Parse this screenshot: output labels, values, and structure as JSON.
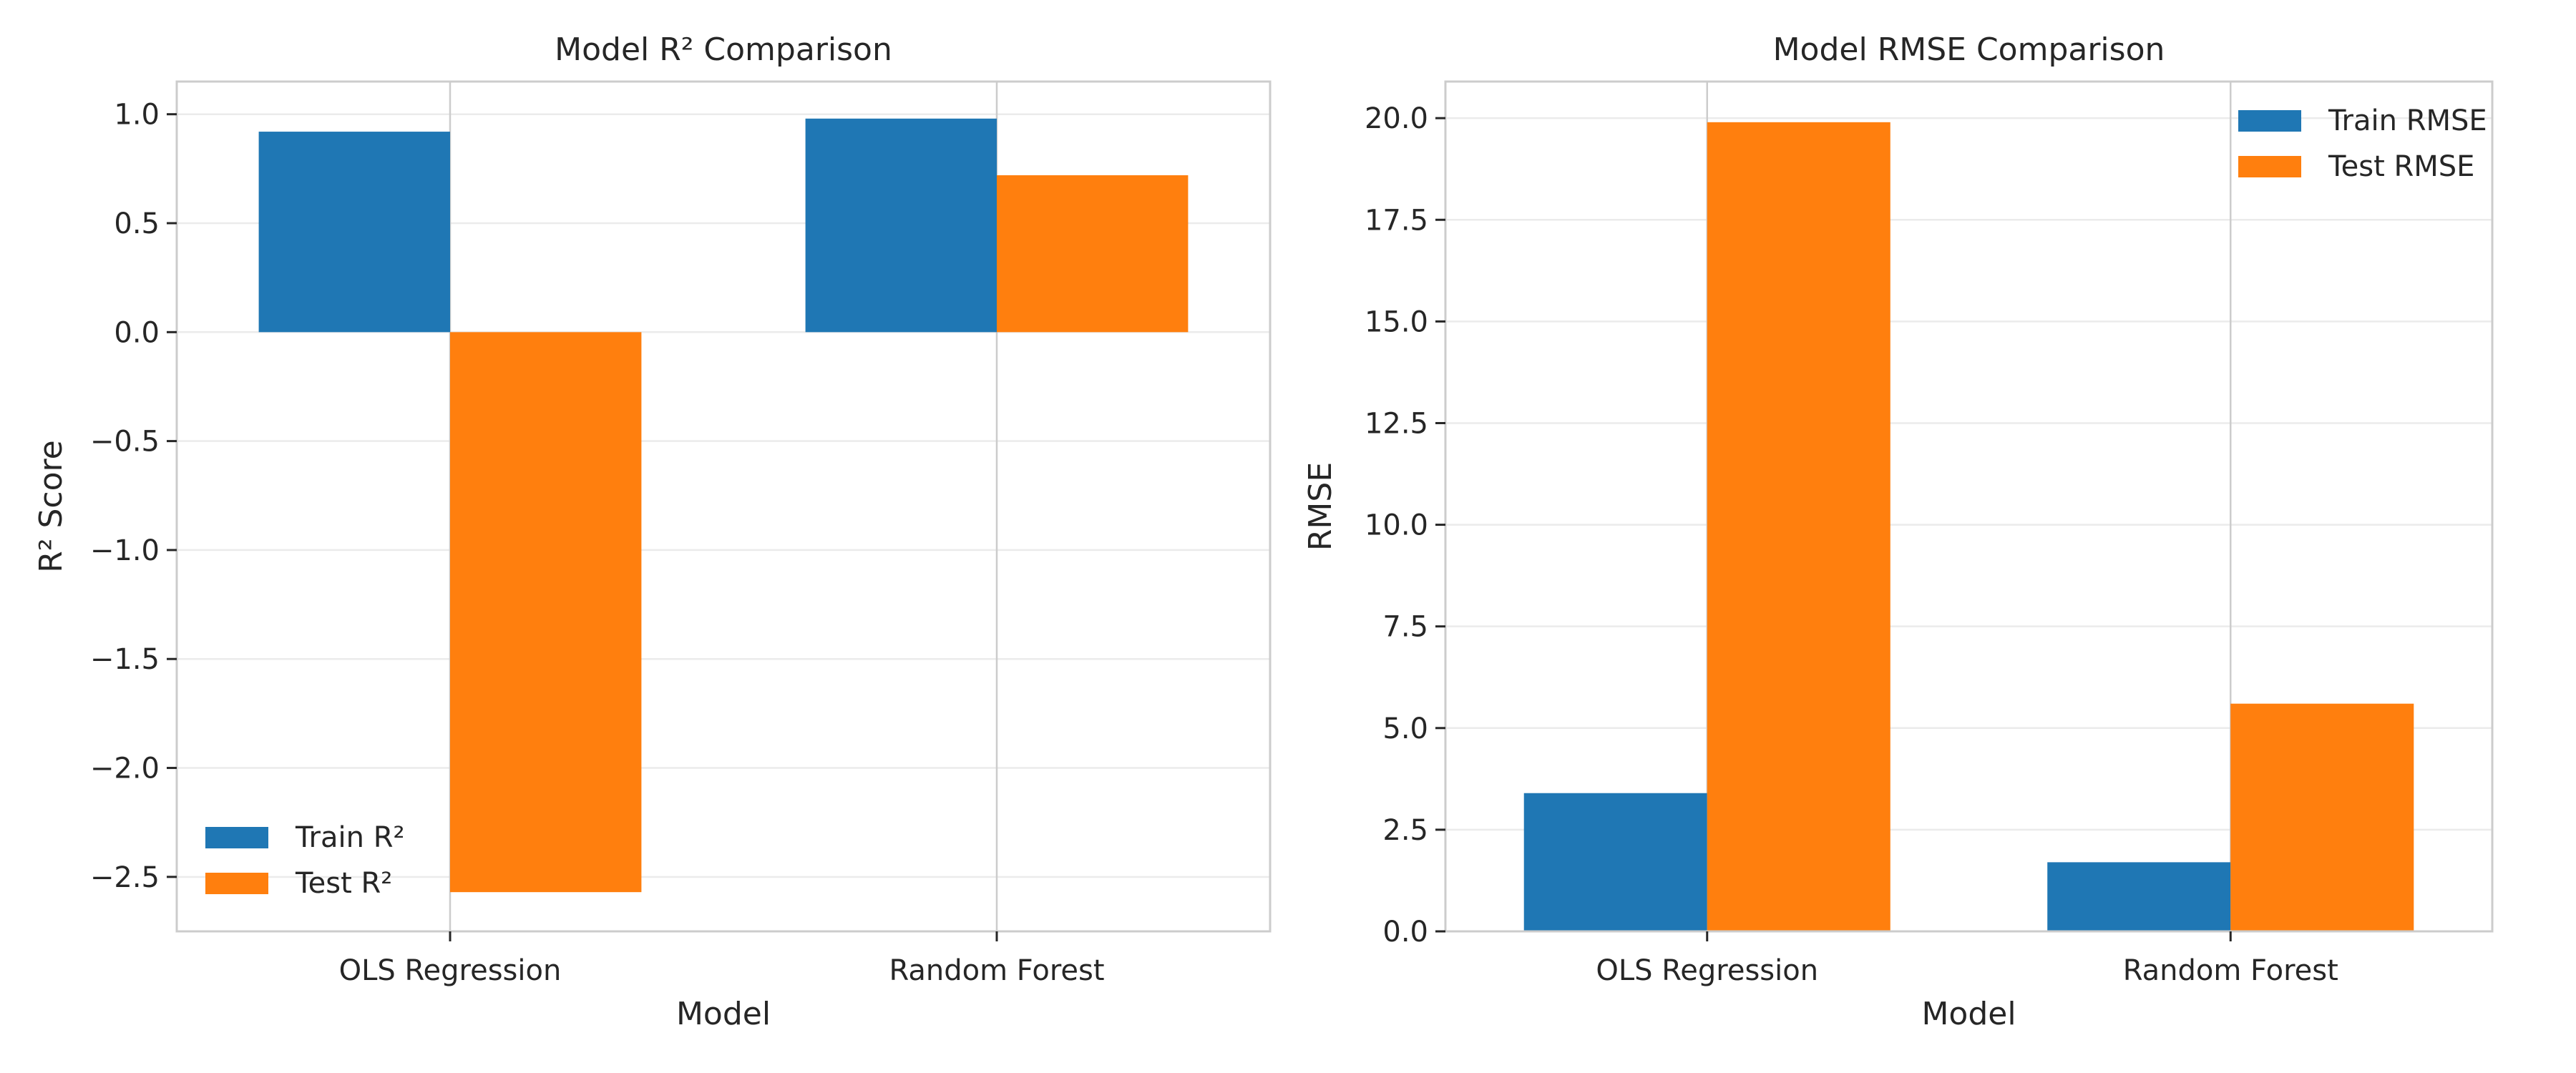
{
  "colors": {
    "train": "#1f77b4",
    "test": "#ff7f0e"
  },
  "chart_data": [
    {
      "type": "bar",
      "title": "Model R² Comparison",
      "xlabel": "Model",
      "ylabel": "R² Score",
      "categories": [
        "OLS Regression",
        "Random Forest"
      ],
      "series": [
        {
          "name": "Train R²",
          "values": [
            0.92,
            0.98
          ]
        },
        {
          "name": "Test R²",
          "values": [
            -2.57,
            0.72
          ]
        }
      ],
      "ylim": [
        -2.75,
        1.15
      ],
      "yticks": [
        1.0,
        0.5,
        0.0,
        -0.5,
        -1.0,
        -1.5,
        -2.0,
        -2.5
      ],
      "ytick_labels": [
        "1.0",
        "0.5",
        "0.0",
        "−0.5",
        "−1.0",
        "−1.5",
        "−2.0",
        "−2.5"
      ],
      "grid": true,
      "legend": "lower-left"
    },
    {
      "type": "bar",
      "title": "Model RMSE Comparison",
      "xlabel": "Model",
      "ylabel": "RMSE",
      "categories": [
        "OLS Regression",
        "Random Forest"
      ],
      "series": [
        {
          "name": "Train RMSE",
          "values": [
            3.4,
            1.7
          ]
        },
        {
          "name": "Test RMSE",
          "values": [
            19.9,
            5.6
          ]
        }
      ],
      "ylim": [
        0,
        20.9
      ],
      "yticks": [
        0.0,
        2.5,
        5.0,
        7.5,
        10.0,
        12.5,
        15.0,
        17.5,
        20.0
      ],
      "ytick_labels": [
        "0.0",
        "2.5",
        "5.0",
        "7.5",
        "10.0",
        "12.5",
        "15.0",
        "17.5",
        "20.0"
      ],
      "grid": true,
      "legend": "upper-right"
    }
  ]
}
